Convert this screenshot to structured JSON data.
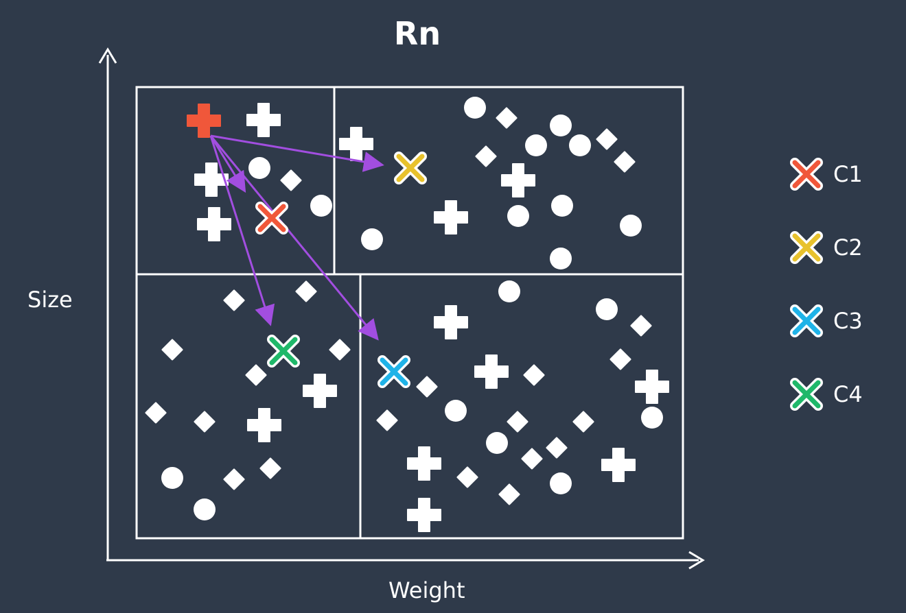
{
  "title": "Rn",
  "xlabel": "Weight",
  "ylabel": "Size",
  "colors": {
    "background": "#2f3a4a",
    "line": "#ffffff",
    "arrow": "#a24ee0",
    "query_point": "#f0573a"
  },
  "legend": [
    {
      "label": "C1",
      "color": "#f0573a"
    },
    {
      "label": "C2",
      "color": "#e8c22d"
    },
    {
      "label": "C3",
      "color": "#1fb3e8"
    },
    {
      "label": "C4",
      "color": "#1fb86a"
    }
  ]
}
